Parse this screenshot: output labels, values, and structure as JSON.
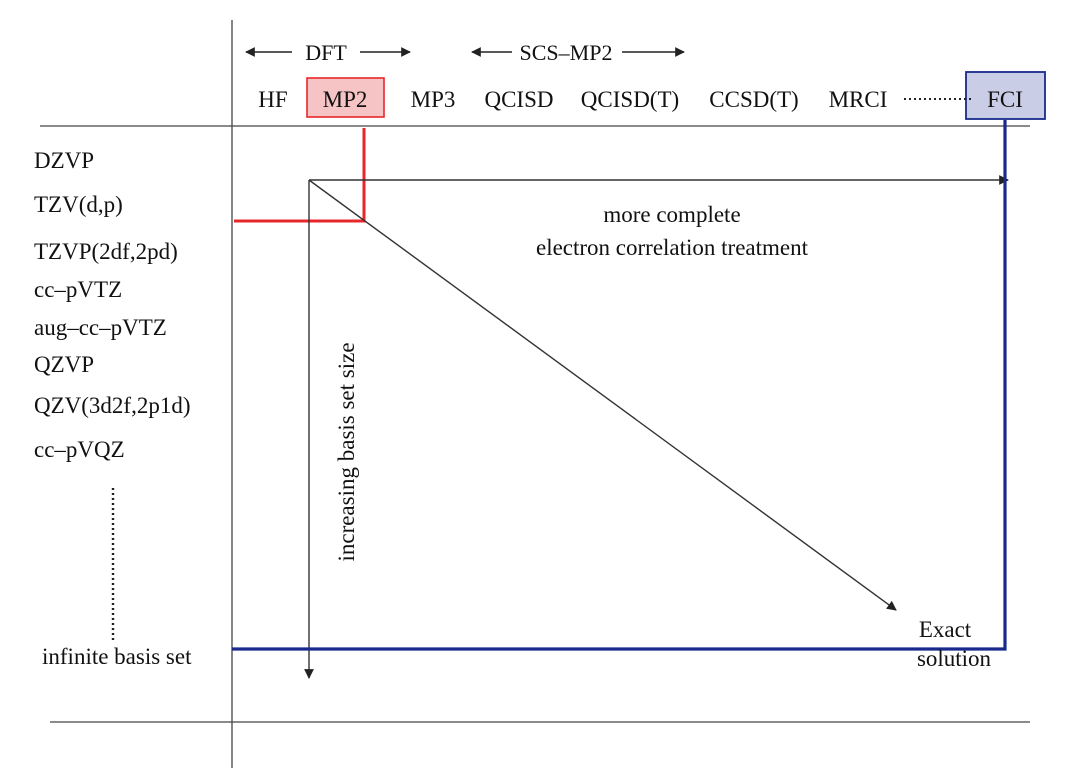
{
  "methods": {
    "group_labels": [
      {
        "id": "dft",
        "label": "DFT"
      },
      {
        "id": "scs",
        "label": "SCS–MP2"
      }
    ],
    "items": [
      "HF",
      "MP2",
      "MP3",
      "QCISD",
      "QCISD(T)",
      "CCSD(T)",
      "MRCI",
      "FCI"
    ],
    "highlight_colors": {
      "MP2": "#e8272a",
      "FCI": "#1a2a8c"
    }
  },
  "basis_sets": {
    "items": [
      "DZVP",
      "TZV(d,p)",
      "TZVP(2df,2pd)",
      "cc–pVTZ",
      "aug–cc–pVTZ",
      "QZVP",
      "QZV(3d2f,2p1d)",
      "cc–pVQZ"
    ],
    "last": "infinite basis set"
  },
  "annotations": {
    "correlation_line1": "more complete",
    "correlation_line2": "electron correlation treatment",
    "basis_axis": "increasing basis set size",
    "exact_line1": "Exact",
    "exact_line2": "solution"
  },
  "colors": {
    "red": "#e8272a",
    "red_fill": "#f6c4c4",
    "blue": "#1a2a8c",
    "blue_fill": "#c9cde6",
    "line": "#444444"
  }
}
